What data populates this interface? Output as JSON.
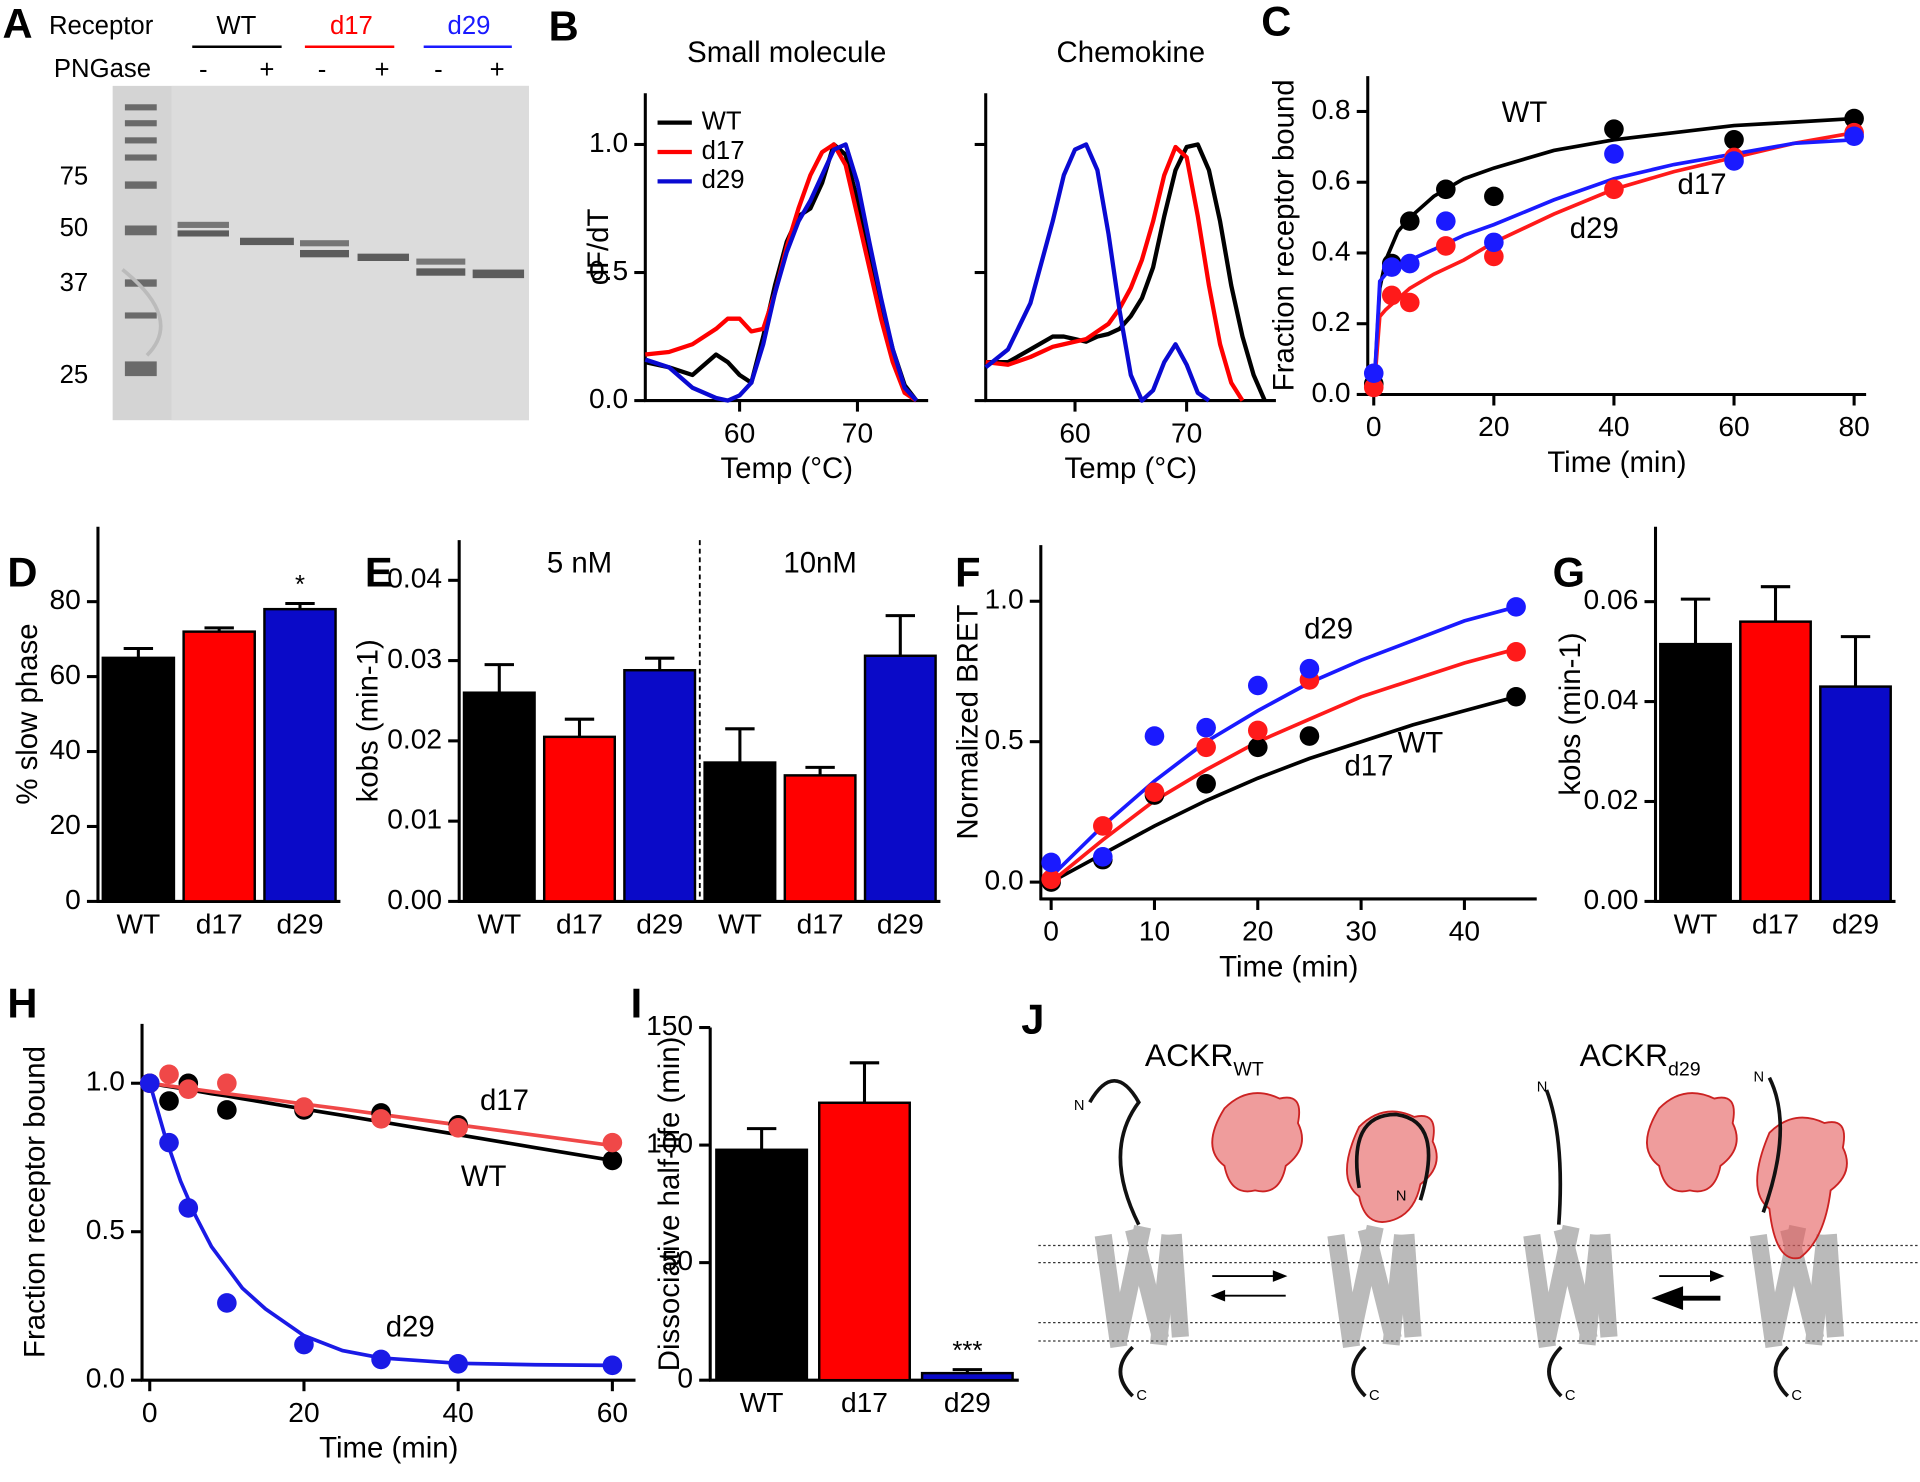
{
  "panel_labels": [
    "A",
    "B",
    "C",
    "D",
    "E",
    "F",
    "G",
    "H",
    "I",
    "J"
  ],
  "gel": {
    "row_labels": [
      "Receptor",
      "PNGase"
    ],
    "receptors": [
      "WT",
      "d17",
      "d29"
    ],
    "treatments": [
      "-",
      "+",
      "-",
      "+",
      "-",
      "+"
    ],
    "ladder": [
      75,
      50,
      37,
      25
    ]
  },
  "chart_data": [
    {
      "type": "line",
      "title": "Small molecule",
      "xlabel": "Temp (°C)",
      "ylabel": "dF/dT",
      "x": [
        52,
        54,
        56,
        58,
        59,
        60,
        61,
        62,
        63,
        64,
        65,
        66,
        67,
        68,
        69,
        70,
        71,
        72,
        73,
        74,
        75
      ],
      "series": [
        {
          "name": "WT",
          "color": "#000000",
          "values": [
            0.15,
            0.13,
            0.1,
            0.18,
            0.15,
            0.1,
            0.07,
            0.25,
            0.45,
            0.62,
            0.72,
            0.75,
            0.85,
            1.0,
            0.96,
            0.78,
            0.58,
            0.38,
            0.2,
            0.06,
            0.0
          ]
        },
        {
          "name": "d17",
          "color": "#ff0000",
          "values": [
            0.18,
            0.19,
            0.22,
            0.28,
            0.32,
            0.32,
            0.27,
            0.28,
            0.42,
            0.6,
            0.75,
            0.88,
            0.97,
            1.0,
            0.92,
            0.72,
            0.52,
            0.32,
            0.15,
            0.03,
            0.0
          ]
        },
        {
          "name": "d29",
          "color": "#0a0ad2",
          "values": [
            0.16,
            0.13,
            0.05,
            0.01,
            0.0,
            0.02,
            0.07,
            0.22,
            0.42,
            0.58,
            0.7,
            0.78,
            0.88,
            0.98,
            1.0,
            0.85,
            0.62,
            0.4,
            0.2,
            0.05,
            0.0
          ]
        }
      ],
      "xlim": [
        52,
        76
      ],
      "ylim": [
        0,
        1.2
      ],
      "xticks": [
        60,
        70
      ],
      "yticks": [
        {
          "value": 0,
          "label": "0.0"
        },
        {
          "value": 0.5,
          "label": "0.5"
        },
        {
          "value": 1,
          "label": "1.0"
        }
      ],
      "legend": "upper left"
    },
    {
      "type": "line",
      "title": "Chemokine",
      "xlabel": "Temp (°C)",
      "x": [
        52,
        54,
        56,
        58,
        59,
        60,
        61,
        62,
        63,
        64,
        65,
        66,
        67,
        68,
        69,
        70,
        71,
        72,
        73,
        74,
        75,
        76,
        77
      ],
      "series": [
        {
          "name": "WT",
          "color": "#000000",
          "values": [
            0.15,
            0.15,
            0.2,
            0.25,
            0.25,
            0.24,
            0.23,
            0.25,
            0.26,
            0.28,
            0.33,
            0.4,
            0.52,
            0.72,
            0.9,
            0.99,
            1.0,
            0.9,
            0.7,
            0.45,
            0.25,
            0.1,
            0.0
          ]
        },
        {
          "name": "d17",
          "color": "#ff0000",
          "values": [
            0.15,
            0.14,
            0.17,
            0.21,
            0.22,
            0.23,
            0.24,
            0.27,
            0.3,
            0.36,
            0.44,
            0.55,
            0.7,
            0.88,
            0.99,
            0.95,
            0.72,
            0.45,
            0.22,
            0.07,
            0.0,
            null,
            null
          ]
        },
        {
          "name": "d29",
          "color": "#0a0ad2",
          "values": [
            0.13,
            0.2,
            0.38,
            0.7,
            0.88,
            0.98,
            1.0,
            0.9,
            0.65,
            0.35,
            0.1,
            0.0,
            0.04,
            0.15,
            0.22,
            0.14,
            0.03,
            0.0,
            null,
            null,
            null,
            null,
            null
          ]
        }
      ],
      "xlim": [
        52,
        78
      ],
      "ylim": [
        0,
        1.2
      ],
      "xticks": [
        60,
        70
      ],
      "yticks": [
        {
          "value": 0,
          "label": "0.0"
        },
        {
          "value": 0.5,
          "label": "0.5"
        },
        {
          "value": 1,
          "label": "1.0"
        }
      ],
      "ytick_labels": false
    },
    {
      "type": "scatter",
      "xlabel": "Time (min)",
      "ylabel": "Fraction receptor bound",
      "x": [
        0,
        3,
        6,
        12,
        20,
        40,
        60,
        80
      ],
      "fit_x": [
        0,
        1,
        2,
        4,
        6,
        10,
        15,
        20,
        30,
        40,
        50,
        60,
        70,
        80
      ],
      "series": [
        {
          "name": "WT",
          "color": "#000000",
          "values": [
            0.03,
            0.37,
            0.49,
            0.58,
            0.56,
            0.75,
            0.72,
            0.78
          ],
          "fit": [
            0,
            0.3,
            0.38,
            0.46,
            0.5,
            0.56,
            0.61,
            0.64,
            0.69,
            0.72,
            0.74,
            0.76,
            0.77,
            0.78
          ]
        },
        {
          "name": "d17",
          "color": "#ff1a1a",
          "values": [
            0.02,
            0.28,
            0.26,
            0.42,
            0.39,
            0.58,
            0.67,
            0.74
          ],
          "fit": [
            0,
            0.22,
            0.24,
            0.27,
            0.3,
            0.34,
            0.38,
            0.43,
            0.51,
            0.58,
            0.63,
            0.67,
            0.71,
            0.74
          ]
        },
        {
          "name": "d29",
          "color": "#1a1aff",
          "values": [
            0.06,
            0.36,
            0.37,
            0.49,
            0.43,
            0.68,
            0.66,
            0.73
          ],
          "fit": [
            0,
            0.32,
            0.34,
            0.36,
            0.38,
            0.41,
            0.45,
            0.48,
            0.55,
            0.61,
            0.65,
            0.68,
            0.71,
            0.72
          ]
        }
      ],
      "xlim": [
        -1,
        82
      ],
      "ylim": [
        0,
        0.9
      ],
      "xticks": [
        0,
        20,
        40,
        60,
        80
      ],
      "yticks": [
        {
          "value": 0,
          "label": "0.0"
        },
        {
          "value": 0.2,
          "label": "0.2"
        },
        {
          "value": 0.4,
          "label": "0.4"
        },
        {
          "value": 0.6,
          "label": "0.6"
        },
        {
          "value": 0.8,
          "label": "0.8"
        }
      ]
    },
    {
      "type": "bar",
      "ylabel": "% slow phase",
      "categories": [
        "WT",
        "d17",
        "d29"
      ],
      "values": [
        65,
        72,
        78
      ],
      "errors": [
        2.5,
        1,
        1.5
      ],
      "colors": [
        "#000000",
        "#ff0000",
        "#0a0ac8"
      ],
      "ylim": [
        0,
        100
      ],
      "yticks": [
        0,
        20,
        40,
        60,
        80
      ],
      "annotations": [
        {
          "text": "*",
          "index": 2
        }
      ]
    },
    {
      "type": "bar",
      "ylabel": "kobs (min-1)",
      "groups": [
        {
          "label": "5 nM",
          "categories": [
            "WT",
            "d17",
            "d29"
          ],
          "values": [
            0.026,
            0.0205,
            0.0288
          ],
          "errors": [
            0.0035,
            0.0022,
            0.0015
          ]
        },
        {
          "label": "10nM",
          "categories": [
            "WT",
            "d17",
            "d29"
          ],
          "values": [
            0.0173,
            0.0157,
            0.0306
          ],
          "errors": [
            0.0042,
            0.001,
            0.005
          ]
        }
      ],
      "colors": [
        "#000000",
        "#ff0000",
        "#0a0ac8"
      ],
      "ylim": [
        0,
        0.045
      ],
      "yticks": [
        {
          "value": 0,
          "label": "0.00"
        },
        {
          "value": 0.01,
          "label": "0.01"
        },
        {
          "value": 0.02,
          "label": "0.02"
        },
        {
          "value": 0.03,
          "label": "0.03"
        },
        {
          "value": 0.04,
          "label": "0.04"
        }
      ]
    },
    {
      "type": "scatter",
      "xlabel": "Time (min)",
      "ylabel": "Normalized BRET",
      "x": [
        0,
        5,
        10,
        15,
        20,
        25,
        45
      ],
      "fit_x": [
        0,
        5,
        10,
        15,
        20,
        25,
        30,
        35,
        40,
        45
      ],
      "series": [
        {
          "name": "WT",
          "color": "#000000",
          "values": [
            0.0,
            0.08,
            0.31,
            0.35,
            0.48,
            0.52,
            0.66
          ],
          "fit": [
            0,
            0.1,
            0.2,
            0.29,
            0.37,
            0.44,
            0.5,
            0.56,
            0.61,
            0.66
          ]
        },
        {
          "name": "d17",
          "color": "#ff1a1a",
          "values": [
            0.01,
            0.2,
            0.32,
            0.48,
            0.54,
            0.72,
            0.82
          ],
          "fit": [
            0,
            0.15,
            0.29,
            0.4,
            0.5,
            0.58,
            0.66,
            0.72,
            0.78,
            0.83
          ]
        },
        {
          "name": "d29",
          "color": "#1a1aff",
          "values": [
            0.07,
            0.09,
            0.52,
            0.55,
            0.7,
            0.76,
            0.98
          ],
          "fit": [
            0.02,
            0.2,
            0.36,
            0.5,
            0.61,
            0.71,
            0.79,
            0.86,
            0.93,
            0.98
          ]
        }
      ],
      "xlim": [
        -1,
        47
      ],
      "ylim": [
        -0.06,
        1.2
      ],
      "xticks": [
        0,
        10,
        20,
        30,
        40
      ],
      "yticks": [
        {
          "value": 0,
          "label": "0.0"
        },
        {
          "value": 0.5,
          "label": "0.5"
        },
        {
          "value": 1,
          "label": "1.0"
        }
      ]
    },
    {
      "type": "bar",
      "ylabel": "kobs (min-1)",
      "categories": [
        "WT",
        "d17",
        "d29"
      ],
      "values": [
        0.0515,
        0.056,
        0.043
      ],
      "errors": [
        0.009,
        0.007,
        0.01
      ],
      "colors": [
        "#000000",
        "#ff0000",
        "#0a0ac8"
      ],
      "ylim": [
        0,
        0.075
      ],
      "yticks": [
        {
          "value": 0,
          "label": "0.00"
        },
        {
          "value": 0.02,
          "label": "0.02"
        },
        {
          "value": 0.04,
          "label": "0.04"
        },
        {
          "value": 0.06,
          "label": "0.06"
        }
      ]
    },
    {
      "type": "scatter",
      "xlabel": "Time (min)",
      "ylabel": "Fraction receptor bound",
      "x": [
        0,
        2.5,
        5,
        10,
        20,
        30,
        40,
        60
      ],
      "fit_x": [
        0,
        2,
        4,
        6,
        8,
        10,
        12,
        15,
        20,
        25,
        30,
        40,
        50,
        60
      ],
      "series": [
        {
          "name": "WT",
          "color": "#000000",
          "values": [
            1.0,
            0.94,
            1.0,
            0.91,
            0.91,
            0.9,
            0.86,
            0.74
          ],
          "fit": [
            1.0,
            0.991,
            0.983,
            0.974,
            0.965,
            0.957,
            0.948,
            0.935,
            0.913,
            0.892,
            0.87,
            0.827,
            0.783,
            0.74
          ]
        },
        {
          "name": "d17",
          "color": "#f04848",
          "values": [
            1.0,
            1.03,
            0.98,
            1.0,
            0.92,
            0.88,
            0.85,
            0.8
          ],
          "fit": [
            1.0,
            0.993,
            0.986,
            0.979,
            0.972,
            0.965,
            0.958,
            0.948,
            0.93,
            0.913,
            0.895,
            0.86,
            0.825,
            0.79
          ]
        },
        {
          "name": "d29",
          "color": "#1a1ae6",
          "values": [
            1.0,
            0.8,
            0.58,
            0.26,
            0.12,
            0.07,
            0.055,
            0.05
          ],
          "fit": [
            1.0,
            0.82,
            0.67,
            0.55,
            0.45,
            0.38,
            0.31,
            0.24,
            0.15,
            0.1,
            0.075,
            0.057,
            0.052,
            0.05
          ]
        }
      ],
      "xlim": [
        -1,
        63
      ],
      "ylim": [
        0,
        1.2
      ],
      "xticks": [
        0,
        20,
        40,
        60
      ],
      "yticks": [
        {
          "value": 0,
          "label": "0.0"
        },
        {
          "value": 0.5,
          "label": "0.5"
        },
        {
          "value": 1,
          "label": "1.0"
        }
      ]
    },
    {
      "type": "bar",
      "ylabel": "Dissociative half-life (min)",
      "categories": [
        "WT",
        "d17",
        "d29"
      ],
      "values": [
        98,
        118,
        3
      ],
      "errors": [
        9,
        17,
        1.5
      ],
      "colors": [
        "#000000",
        "#ff0000",
        "#0a0ac8"
      ],
      "ylim": [
        0,
        150
      ],
      "yticks": [
        0,
        50,
        100,
        150
      ],
      "annotations": [
        {
          "text": "***",
          "index": 2
        }
      ]
    }
  ],
  "diagram": {
    "titles": [
      {
        "main": "ACKR",
        "sub": "WT"
      },
      {
        "main": "ACKR",
        "sub": "d29"
      }
    ],
    "termini": [
      "N",
      "C"
    ]
  }
}
